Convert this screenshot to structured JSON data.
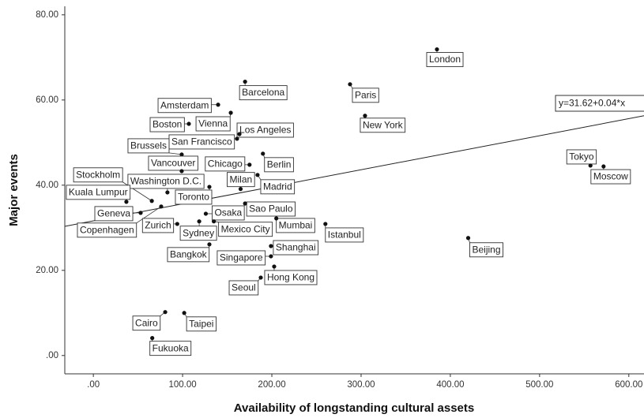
{
  "chart_data": {
    "type": "scatter",
    "x_label": "Availability of longstanding cultural assets",
    "y_label": "Major events",
    "point_labels": [
      "London",
      "Paris",
      "New York",
      "Barcelona",
      "Amsterdam",
      "Vienna",
      "Boston",
      "Los Angeles",
      "San Francisco",
      "Brussels",
      "Berlin",
      "Vancouver",
      "Chicago",
      "Stockholm",
      "Washington D.C.",
      "Milan",
      "Madrid",
      "Toronto",
      "Kuala Lumpur",
      "Geneva",
      "Copenhagen",
      "Zurich",
      "Osaka",
      "Sao Paulo",
      "Mexico City",
      "Sydney",
      "Mumbai",
      "Istanbul",
      "Beijing",
      "Tokyo",
      "Moscow",
      "Bangkok",
      "Shanghai",
      "Singapore",
      "Hong Kong",
      "Seoul",
      "Cairo",
      "Taipei",
      "Fukuoka"
    ],
    "x": [
      385,
      287.6,
      304.4,
      170,
      139.8,
      154,
      107,
      163.7,
      161,
      99,
      190,
      99,
      175,
      65.5,
      83,
      165,
      184,
      130,
      37,
      53,
      76,
      94,
      126,
      170,
      135,
      118.6,
      205,
      260,
      420,
      557,
      571.7,
      130,
      199,
      199,
      202.6,
      187.6,
      80.5,
      101.8,
      66
    ],
    "y": [
      71.9,
      63.7,
      56.3,
      64.3,
      58.9,
      57,
      54.4,
      52,
      50.9,
      47.2,
      47.4,
      43.3,
      44.8,
      36.3,
      38.3,
      39.1,
      42.4,
      39.6,
      36.1,
      33.5,
      35,
      30.9,
      33.3,
      35.7,
      31.5,
      31.5,
      32.2,
      30.9,
      27.6,
      44.6,
      44.4,
      26.1,
      25.7,
      23.3,
      20.9,
      18.3,
      10.2,
      10,
      4.1
    ],
    "fit": {
      "intercept": 31.62,
      "slope": 0.04,
      "label": "y=31.62+0.04*x"
    },
    "color": "#111111",
    "xlim": [
      -32,
      617
    ],
    "ylim": [
      -4.3,
      82
    ],
    "xticks": [
      {
        "value": 0,
        "label": ".00"
      },
      {
        "value": 100,
        "label": "100.00"
      },
      {
        "value": 200,
        "label": "200.00"
      },
      {
        "value": 300,
        "label": "300.00"
      },
      {
        "value": 400,
        "label": "400.00"
      },
      {
        "value": 500,
        "label": "500.00"
      },
      {
        "value": 600,
        "label": "600.00"
      }
    ],
    "yticks": [
      {
        "value": 0,
        "label": ".00"
      },
      {
        "value": 20,
        "label": "20.00"
      },
      {
        "value": 40,
        "label": "40.00"
      },
      {
        "value": 60,
        "label": "60.00"
      },
      {
        "value": 80,
        "label": "80.00"
      }
    ]
  }
}
